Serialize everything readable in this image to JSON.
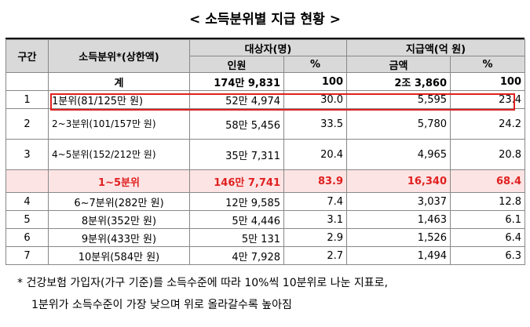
{
  "title": "< 소득분위별 지급 현황 >",
  "headers": {
    "section": "구간",
    "income_class": "소득분위*(상한액)",
    "recipients": "대상자(명)",
    "payment": "지급액(억 원)",
    "count": "인원",
    "pct": "%",
    "amount": "금액",
    "pct2": "%"
  },
  "total": {
    "label": "계",
    "count": "174만 9,831",
    "pct": "100",
    "amount": "2조 3,860",
    "pct2": "100"
  },
  "rows_top": [
    {
      "section": "1",
      "income": "1분위(81/125만 원)",
      "count": "52만 4,974",
      "pct": "30.0",
      "amount": "5,595",
      "pct2": "23.4"
    },
    {
      "section": "2",
      "income": "2~3분위(101/157만 원)",
      "count": "58만 5,456",
      "pct": "33.5",
      "amount": "5,780",
      "pct2": "24.2"
    },
    {
      "section": "3",
      "income": "4~5분위(152/212만 원)",
      "count": "35만 7,311",
      "pct": "20.4",
      "amount": "4,965",
      "pct2": "20.8"
    }
  ],
  "subtotal": {
    "label": "1~5분위",
    "count": "146만 7,741",
    "pct": "83.9",
    "amount": "16,340",
    "pct2": "68.4"
  },
  "rows_bottom": [
    {
      "section": "4",
      "income": "6~7분위(282만 원)",
      "count": "12만 9,585",
      "pct": "7.4",
      "amount": "3,037",
      "pct2": "12.8"
    },
    {
      "section": "5",
      "income": "8분위(352만 원)",
      "count": "5만 4,446",
      "pct": "3.1",
      "amount": "1,463",
      "pct2": "6.1"
    },
    {
      "section": "6",
      "income": "9분위(433만 원)",
      "count": "5만 131",
      "pct": "2.9",
      "amount": "1,526",
      "pct2": "6.4"
    },
    {
      "section": "7",
      "income": "10분위(584만 원)",
      "count": "4만 7,928",
      "pct": "2.7",
      "amount": "1,494",
      "pct2": "6.3"
    }
  ],
  "footnote": {
    "line1": "* 건강보험 가입자(가구 기준)를 소득수준에 따라 10%씩 10분위로 나눈 지표로,",
    "line2": "1분위가 소득수준이 가장 낮으며 위로 올라갈수록 높아짐"
  }
}
